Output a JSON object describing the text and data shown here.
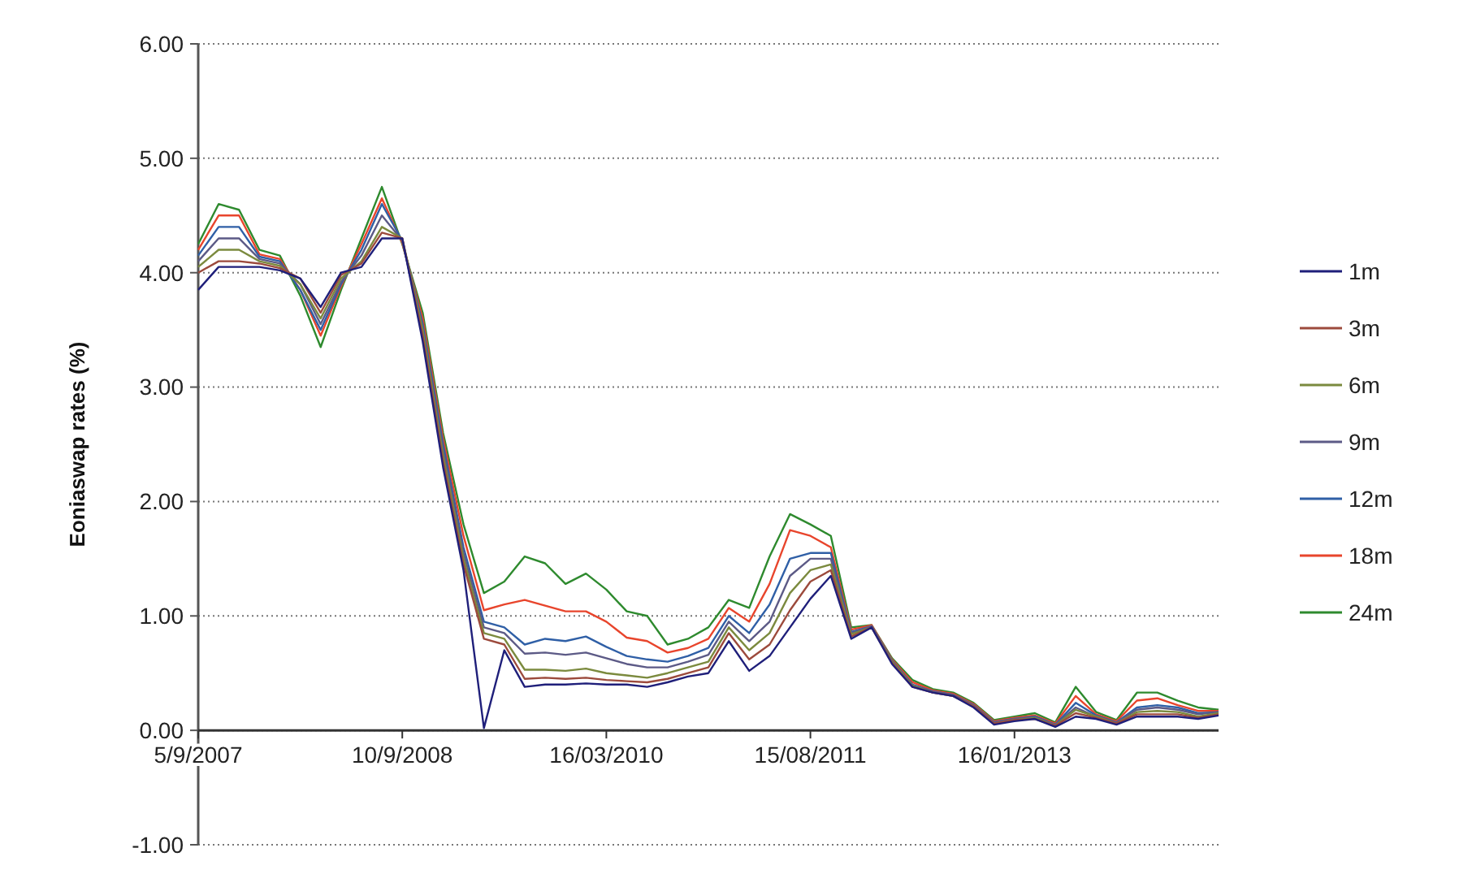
{
  "chart_data": {
    "type": "line",
    "ylabel": "Eoniaswap rates (%)",
    "categories": [
      "5/9/2007",
      null,
      null,
      null,
      null,
      null,
      null,
      null,
      null,
      null,
      "10/9/2008",
      null,
      null,
      null,
      null,
      null,
      null,
      null,
      null,
      null,
      "16/03/2010",
      null,
      null,
      null,
      null,
      null,
      null,
      null,
      null,
      null,
      "15/08/2011",
      null,
      null,
      null,
      null,
      null,
      null,
      null,
      null,
      null,
      "16/01/2013",
      null,
      null,
      null,
      null,
      null,
      null,
      null,
      null,
      null,
      null
    ],
    "ylim": [
      -1,
      6
    ],
    "yticks": [
      {
        "value": -1,
        "label": "-1.00"
      },
      {
        "value": 0,
        "label": "0.00"
      },
      {
        "value": 1,
        "label": "1.00"
      },
      {
        "value": 2,
        "label": "2.00"
      },
      {
        "value": 3,
        "label": "3.00"
      },
      {
        "value": 4,
        "label": "4.00"
      },
      {
        "value": 5,
        "label": "5.00"
      },
      {
        "value": 6,
        "label": "6.00"
      }
    ],
    "grid": "y",
    "legend": "right",
    "marker": "none",
    "line_style": "solid",
    "series": [
      {
        "name": "1m",
        "color": "#1f1f7a",
        "values": [
          3.85,
          4.05,
          4.05,
          4.05,
          4.02,
          3.95,
          3.7,
          4.0,
          4.05,
          4.3,
          4.3,
          3.4,
          2.3,
          1.4,
          0.02,
          0.7,
          0.38,
          0.4,
          0.4,
          0.41,
          0.4,
          0.4,
          0.38,
          0.42,
          0.47,
          0.5,
          0.78,
          0.52,
          0.65,
          0.9,
          1.15,
          1.35,
          0.8,
          0.9,
          0.58,
          0.38,
          0.33,
          0.3,
          0.2,
          0.05,
          0.08,
          0.1,
          0.03,
          0.12,
          0.1,
          0.05,
          0.12,
          0.12,
          0.12,
          0.1,
          0.13
        ]
      },
      {
        "name": "3m",
        "color": "#9c4a3c",
        "values": [
          4.0,
          4.1,
          4.1,
          4.08,
          4.04,
          3.95,
          3.65,
          3.98,
          4.08,
          4.35,
          4.3,
          3.45,
          2.35,
          1.45,
          0.8,
          0.75,
          0.45,
          0.46,
          0.45,
          0.46,
          0.44,
          0.43,
          0.42,
          0.45,
          0.5,
          0.55,
          0.85,
          0.62,
          0.75,
          1.05,
          1.3,
          1.4,
          0.82,
          0.9,
          0.59,
          0.38,
          0.33,
          0.3,
          0.21,
          0.06,
          0.09,
          0.1,
          0.04,
          0.15,
          0.11,
          0.06,
          0.14,
          0.14,
          0.14,
          0.11,
          0.14
        ]
      },
      {
        "name": "6m",
        "color": "#7b8a3e",
        "values": [
          4.05,
          4.2,
          4.2,
          4.1,
          4.06,
          3.9,
          3.6,
          3.95,
          4.1,
          4.4,
          4.3,
          3.5,
          2.4,
          1.5,
          0.85,
          0.8,
          0.53,
          0.53,
          0.52,
          0.54,
          0.5,
          0.48,
          0.46,
          0.5,
          0.55,
          0.6,
          0.9,
          0.7,
          0.85,
          1.2,
          1.4,
          1.45,
          0.84,
          0.9,
          0.6,
          0.39,
          0.33,
          0.3,
          0.21,
          0.06,
          0.09,
          0.11,
          0.04,
          0.18,
          0.12,
          0.06,
          0.16,
          0.17,
          0.16,
          0.12,
          0.15
        ]
      },
      {
        "name": "9m",
        "color": "#5c5a86",
        "values": [
          4.1,
          4.3,
          4.3,
          4.12,
          4.08,
          3.9,
          3.55,
          3.92,
          4.15,
          4.5,
          4.28,
          3.5,
          2.45,
          1.55,
          0.9,
          0.85,
          0.67,
          0.68,
          0.66,
          0.68,
          0.63,
          0.58,
          0.55,
          0.55,
          0.6,
          0.66,
          0.95,
          0.78,
          0.95,
          1.35,
          1.5,
          1.5,
          0.85,
          0.91,
          0.6,
          0.39,
          0.34,
          0.31,
          0.22,
          0.07,
          0.1,
          0.11,
          0.05,
          0.2,
          0.12,
          0.07,
          0.18,
          0.2,
          0.18,
          0.14,
          0.16
        ]
      },
      {
        "name": "12m",
        "color": "#2f5fa6",
        "values": [
          4.15,
          4.4,
          4.4,
          4.14,
          4.1,
          3.85,
          3.5,
          3.9,
          4.2,
          4.6,
          4.28,
          3.55,
          2.5,
          1.6,
          0.95,
          0.9,
          0.75,
          0.8,
          0.78,
          0.82,
          0.73,
          0.65,
          0.62,
          0.6,
          0.65,
          0.72,
          1.0,
          0.85,
          1.1,
          1.5,
          1.55,
          1.55,
          0.86,
          0.91,
          0.61,
          0.4,
          0.34,
          0.31,
          0.22,
          0.07,
          0.1,
          0.12,
          0.05,
          0.24,
          0.13,
          0.07,
          0.2,
          0.22,
          0.2,
          0.15,
          0.16
        ]
      },
      {
        "name": "18m",
        "color": "#e8452c",
        "values": [
          4.2,
          4.5,
          4.5,
          4.16,
          4.12,
          3.85,
          3.45,
          3.88,
          4.25,
          4.65,
          4.26,
          3.6,
          2.55,
          1.7,
          1.05,
          1.1,
          1.14,
          1.09,
          1.04,
          1.04,
          0.95,
          0.81,
          0.78,
          0.68,
          0.72,
          0.8,
          1.07,
          0.95,
          1.28,
          1.75,
          1.7,
          1.6,
          0.88,
          0.92,
          0.62,
          0.42,
          0.35,
          0.32,
          0.23,
          0.08,
          0.11,
          0.13,
          0.06,
          0.3,
          0.14,
          0.08,
          0.26,
          0.28,
          0.22,
          0.17,
          0.17
        ]
      },
      {
        "name": "24m",
        "color": "#2e8a2e",
        "values": [
          4.25,
          4.6,
          4.55,
          4.2,
          4.15,
          3.8,
          3.35,
          3.85,
          4.3,
          4.75,
          4.25,
          3.65,
          2.6,
          1.8,
          1.2,
          1.3,
          1.52,
          1.46,
          1.28,
          1.37,
          1.23,
          1.04,
          1.0,
          0.75,
          0.8,
          0.9,
          1.14,
          1.07,
          1.52,
          1.89,
          1.8,
          1.7,
          0.9,
          0.92,
          0.63,
          0.44,
          0.36,
          0.33,
          0.24,
          0.09,
          0.12,
          0.15,
          0.07,
          0.38,
          0.16,
          0.09,
          0.33,
          0.33,
          0.26,
          0.2,
          0.18
        ]
      }
    ]
  }
}
